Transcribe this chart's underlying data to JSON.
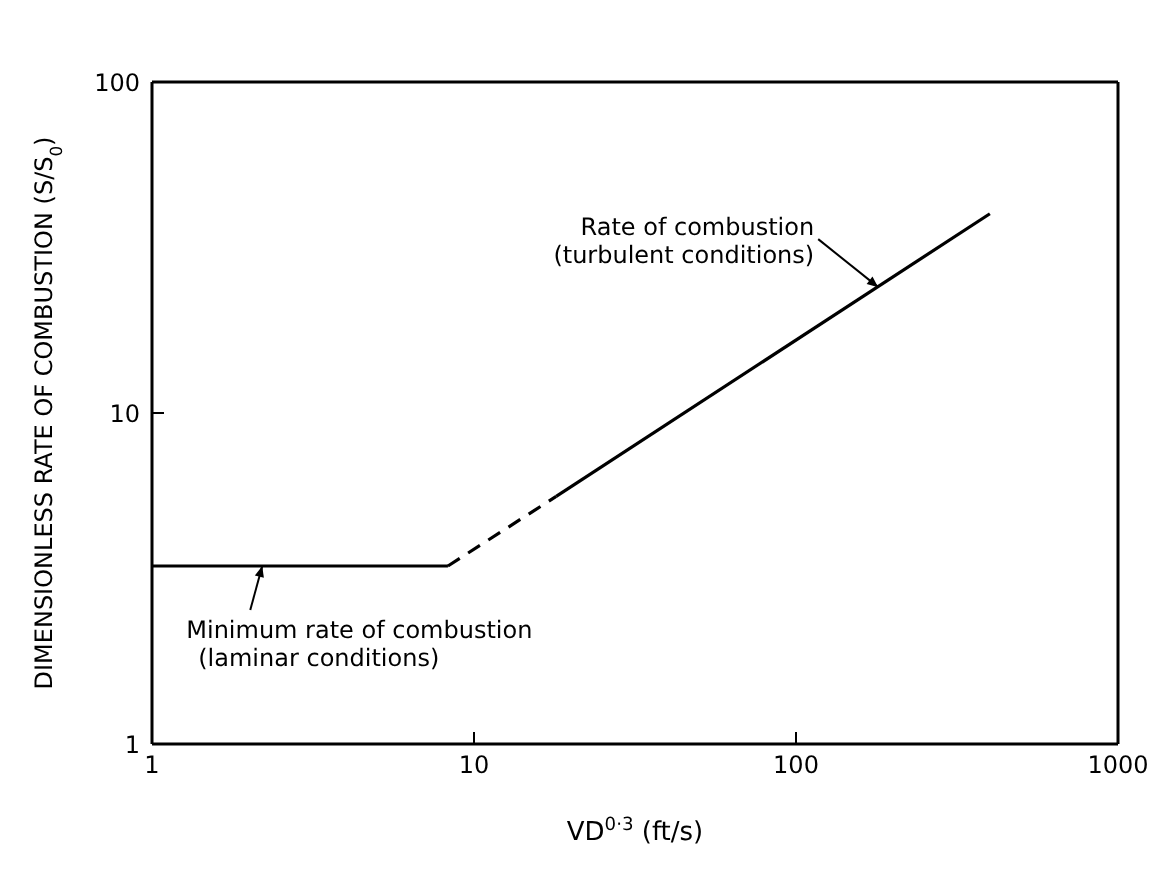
{
  "chart_data": {
    "type": "line",
    "xlabel": "VD$^{0·3}$ (ft/s)",
    "ylabel": "DIMENSIONLESS RATE OF COMBUSTION (S/S$_{0}$)",
    "log": "xy",
    "xlim": [
      1,
      1000
    ],
    "xticks": [
      1,
      10,
      100,
      1000
    ],
    "ylim": [
      1,
      100
    ],
    "yticks": [
      1,
      10,
      100
    ],
    "marker": "none",
    "series": [
      {
        "color": "#000000",
        "line_style": "solid",
        "x": [
          1,
          8.3
        ],
        "values": [
          3.45,
          3.45
        ]
      },
      {
        "color": "#000000",
        "line_style": "dashed",
        "x": [
          8.3,
          18
        ],
        "values": [
          3.45,
          5.6
        ]
      },
      {
        "color": "#000000",
        "line_style": "solid",
        "x": [
          18,
          400
        ],
        "values": [
          5.6,
          40
        ]
      }
    ],
    "annotations": [
      {
        "text": "Rate of combustion\n(turbulent conditions)",
        "x": 180,
        "y": 24
      },
      {
        "text": "Minimum rate of combustion\n(laminar conditions)",
        "x": 2.2,
        "y": 3.45
      }
    ]
  }
}
